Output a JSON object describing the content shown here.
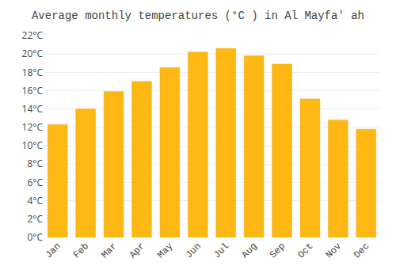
{
  "chart_data": {
    "type": "bar",
    "title": "Average monthly temperatures (°C ) in Al Mayfa' ah",
    "categories": [
      "Jan",
      "Feb",
      "Mar",
      "Apr",
      "May",
      "Jun",
      "Jul",
      "Aug",
      "Sep",
      "Oct",
      "Nov",
      "Dec"
    ],
    "values": [
      12.3,
      14.0,
      15.9,
      17.0,
      18.5,
      20.2,
      20.6,
      19.8,
      18.9,
      15.1,
      12.8,
      11.8
    ],
    "color": "#FDB813",
    "ylim": [
      0,
      22
    ],
    "yticks": [
      {
        "value": 0,
        "label": "0°C"
      },
      {
        "value": 2,
        "label": "2°C"
      },
      {
        "value": 4,
        "label": "4°C"
      },
      {
        "value": 6,
        "label": "6°C"
      },
      {
        "value": 8,
        "label": "8°C"
      },
      {
        "value": 10,
        "label": "10°C"
      },
      {
        "value": 12,
        "label": "12°C"
      },
      {
        "value": 14,
        "label": "14°C"
      },
      {
        "value": 16,
        "label": "16°C"
      },
      {
        "value": 18,
        "label": "18°C"
      },
      {
        "value": 20,
        "label": "20°C"
      },
      {
        "value": 22,
        "label": "22°C"
      }
    ],
    "grid": true
  }
}
